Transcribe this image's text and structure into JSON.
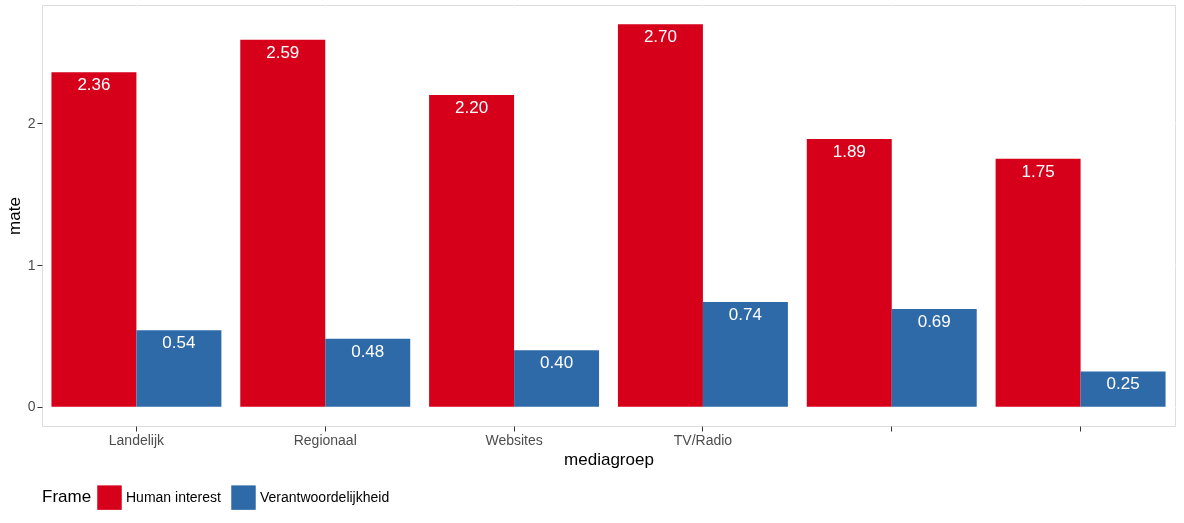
{
  "chart_data": {
    "type": "bar",
    "xlabel": "mediagroep",
    "ylabel": "mate",
    "legend_title": "Frame",
    "categories": [
      "Landelijk",
      "Regionaal",
      "Websites",
      "TV/Radio",
      null,
      null
    ],
    "series": [
      {
        "name": "Human interest",
        "color": "#d7001b",
        "values": [
          2.36,
          2.59,
          2.2,
          2.7,
          1.89,
          1.75
        ],
        "value_labels": [
          "2.36",
          "2.59",
          "2.20",
          "2.70",
          "1.89",
          "1.75"
        ]
      },
      {
        "name": "Verantwoordelijkheid",
        "color": "#2f6aa8",
        "values": [
          0.54,
          0.48,
          0.4,
          0.74,
          0.69,
          0.25
        ],
        "value_labels": [
          "0.54",
          "0.48",
          "0.40",
          "0.74",
          "0.69",
          "0.25"
        ]
      }
    ],
    "ylim": [
      -0.135,
      2.835
    ],
    "yticks": [
      0,
      1,
      2
    ],
    "grid": true,
    "legend": "bottom"
  }
}
